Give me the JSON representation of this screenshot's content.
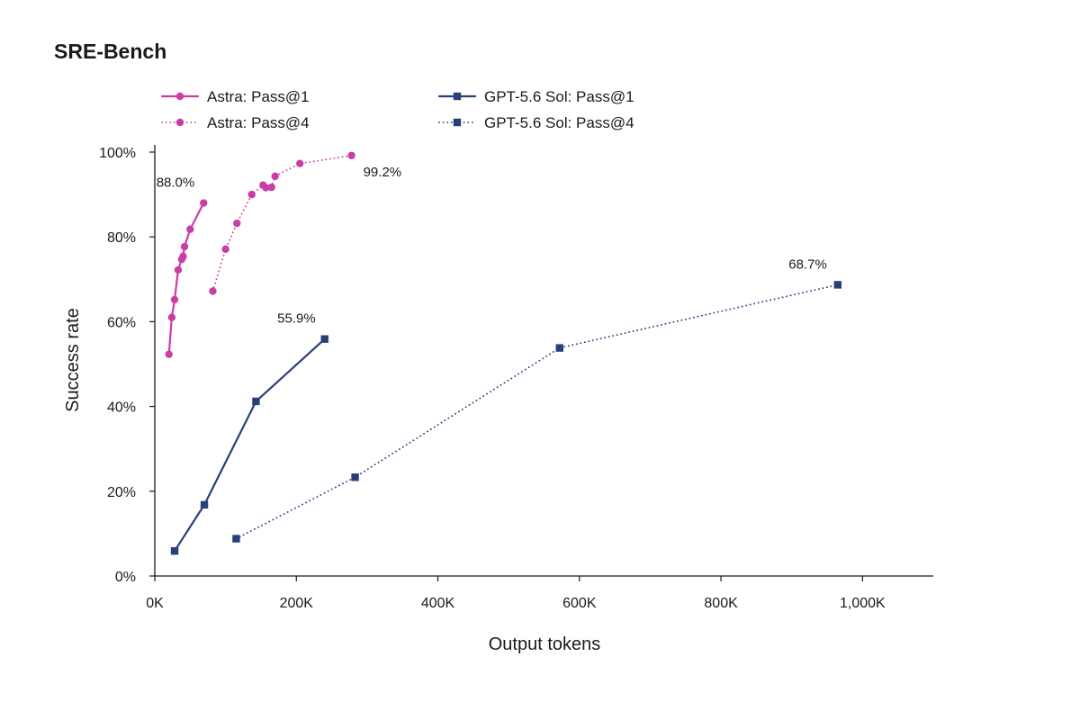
{
  "page": {
    "title": "SRE-Bench"
  },
  "colors": {
    "astra": "#c83ea6",
    "gpt": "#283f7a",
    "axis": "#1a1a1a"
  },
  "chart_data": {
    "type": "line",
    "title": "SRE-Bench",
    "xlabel": "Output tokens",
    "ylabel": "Success rate",
    "xlim": [
      0,
      1100000
    ],
    "ylim": [
      0,
      100
    ],
    "x_ticks": [
      {
        "value": 0,
        "label": "0K"
      },
      {
        "value": 200000,
        "label": "200K"
      },
      {
        "value": 400000,
        "label": "400K"
      },
      {
        "value": 600000,
        "label": "600K"
      },
      {
        "value": 800000,
        "label": "800K"
      },
      {
        "value": 1000000,
        "label": "1,000K"
      }
    ],
    "y_ticks": [
      {
        "value": 0,
        "label": "0%"
      },
      {
        "value": 20,
        "label": "20%"
      },
      {
        "value": 40,
        "label": "40%"
      },
      {
        "value": 60,
        "label": "60%"
      },
      {
        "value": 80,
        "label": "80%"
      },
      {
        "value": 100,
        "label": "100%"
      }
    ],
    "grid": false,
    "legend_position": "top",
    "series": [
      {
        "name": "Astra: Pass@1",
        "color": "#c83ea6",
        "dash": "solid",
        "marker": "circle",
        "points": [
          [
            20000,
            52.3
          ],
          [
            24000,
            61
          ],
          [
            28000,
            65.2
          ],
          [
            33000,
            72.2
          ],
          [
            38000,
            74.7
          ],
          [
            40000,
            75.4
          ],
          [
            42000,
            77.7
          ],
          [
            50000,
            81.8
          ],
          [
            69000,
            88.0
          ]
        ]
      },
      {
        "name": "Astra: Pass@4",
        "color": "#c83ea6",
        "dash": "dotted",
        "marker": "circle",
        "points": [
          [
            82000,
            67.2
          ],
          [
            100000,
            77.1
          ],
          [
            116000,
            83.2
          ],
          [
            137000,
            90.0
          ],
          [
            153000,
            92.2
          ],
          [
            157000,
            91.6
          ],
          [
            165000,
            91.7
          ],
          [
            170000,
            94.3
          ],
          [
            205000,
            97.3
          ],
          [
            278000,
            99.2
          ]
        ]
      },
      {
        "name": "GPT-5.6 Sol: Pass@1",
        "color": "#283f7a",
        "dash": "solid",
        "marker": "square",
        "points": [
          [
            28000,
            5.9
          ],
          [
            70000,
            16.8
          ],
          [
            143000,
            41.2
          ],
          [
            240000,
            55.9
          ]
        ]
      },
      {
        "name": "GPT-5.6 Sol: Pass@4",
        "color": "#283f7a",
        "dash": "dotted",
        "marker": "square",
        "points": [
          [
            115000,
            8.8
          ],
          [
            283000,
            23.3
          ],
          [
            572000,
            53.8
          ],
          [
            965000,
            68.7
          ]
        ]
      }
    ],
    "annotations": [
      {
        "text": "88.0%",
        "x": 69000,
        "y": 88.0,
        "anchor": "end",
        "dx": -10,
        "dy": -18
      },
      {
        "text": "99.2%",
        "x": 278000,
        "y": 99.2,
        "anchor": "start",
        "dx": 13,
        "dy": 23
      },
      {
        "text": "55.9%",
        "x": 240000,
        "y": 55.9,
        "anchor": "end",
        "dx": -10,
        "dy": -18
      },
      {
        "text": "68.7%",
        "x": 965000,
        "y": 68.7,
        "anchor": "end",
        "dx": -12,
        "dy": -18
      }
    ]
  }
}
